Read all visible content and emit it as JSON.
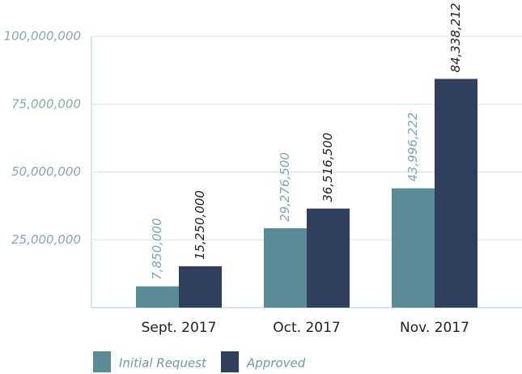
{
  "chart_data": {
    "type": "bar",
    "categories": [
      "Sept. 2017",
      "Oct. 2017",
      "Nov. 2017"
    ],
    "series": [
      {
        "name": "Initial Request",
        "color": "#5b8b94",
        "values": [
          7850000,
          29276500,
          43996222
        ],
        "value_labels": [
          "7,850,000",
          "29,276,500",
          "43,996,222"
        ]
      },
      {
        "name": "Approved",
        "color": "#2f3f5d",
        "values": [
          15250000,
          36516500,
          84338212
        ],
        "value_labels": [
          "15,250,000",
          "36,516,500",
          "84,338,212"
        ]
      }
    ],
    "ylim": [
      0,
      100000000
    ],
    "yticks": [
      {
        "value": 25000000,
        "label": "25,000,000"
      },
      {
        "value": 50000000,
        "label": "50,000,000"
      },
      {
        "value": 75000000,
        "label": "75,000,000"
      },
      {
        "value": 100000000,
        "label": "100,000,000"
      }
    ],
    "grid": true
  }
}
